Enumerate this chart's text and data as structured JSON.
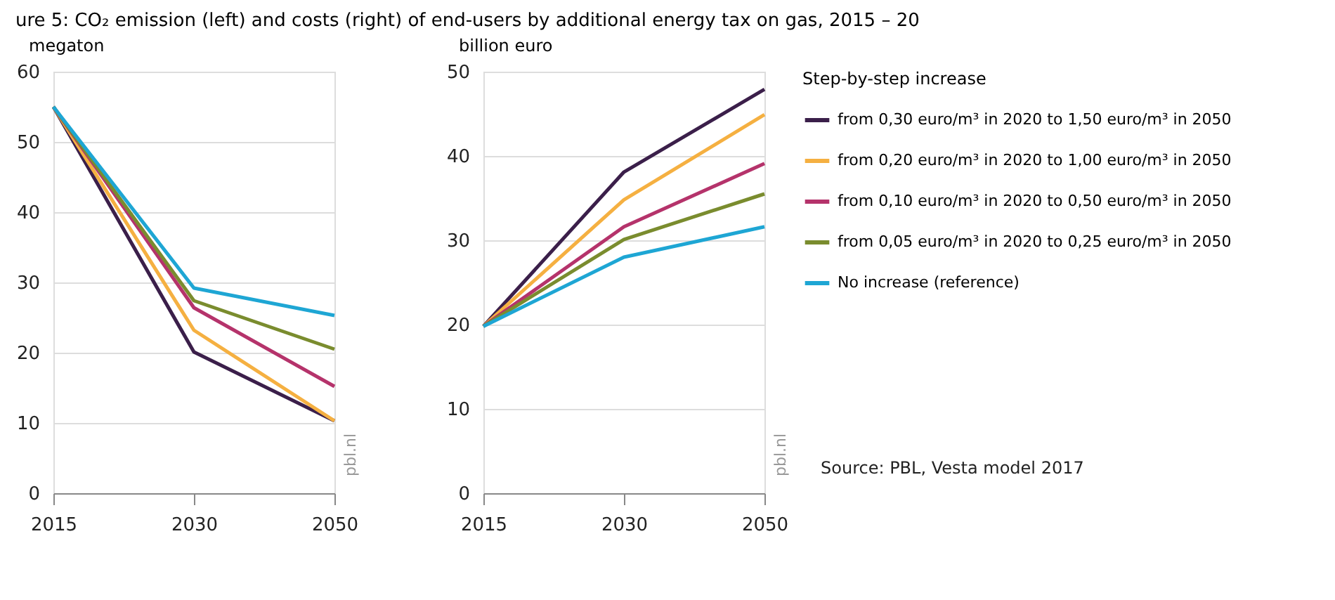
{
  "chart_data": [
    {
      "type": "line",
      "title": "ure 5: CO₂ emission (left) and costs (right) of end-users by additional energy tax on gas, 2015 – 20",
      "ylabel": "megaton",
      "categories": [
        "2015",
        "2030",
        "2050"
      ],
      "ylim": [
        0,
        60
      ],
      "yticks": [
        0,
        10,
        20,
        30,
        40,
        50,
        60
      ],
      "grid": "y",
      "legend": false,
      "line_style": "solid",
      "marker": "none",
      "series": [
        {
          "color": "#3b1f4a",
          "values": [
            55,
            20.1,
            10.3
          ]
        },
        {
          "color": "#f5b041",
          "values": [
            55,
            23.2,
            10.3
          ]
        },
        {
          "color": "#b5336b",
          "values": [
            55,
            26.4,
            15.2
          ]
        },
        {
          "color": "#7a8c2e",
          "values": [
            55,
            27.4,
            20.5
          ]
        },
        {
          "color": "#1ea6d4",
          "values": [
            55,
            29.2,
            25.3
          ]
        }
      ],
      "annotations": [
        "pbl.nl"
      ]
    },
    {
      "type": "line",
      "ylabel": "billion euro",
      "categories": [
        "2015",
        "2030",
        "2050"
      ],
      "ylim": [
        0,
        50
      ],
      "yticks": [
        0,
        10,
        20,
        30,
        40,
        50
      ],
      "grid": "y",
      "legend": "right",
      "legend_title": "Step-by-step increase",
      "line_style": "solid",
      "marker": "none",
      "series": [
        {
          "name": "from 0,30 euro/m³ in 2020 to 1,50 euro/m³ in 2050",
          "color": "#3b1f4a",
          "values": [
            19.8,
            38.1,
            47.9
          ]
        },
        {
          "name": "from 0,20 euro/m³ in 2020 to 1,00 euro/m³ in 2050",
          "color": "#f5b041",
          "values": [
            19.8,
            34.8,
            44.9
          ]
        },
        {
          "name": "from 0,10 euro/m³ in 2020 to 0,50 euro/m³ in 2050",
          "color": "#b5336b",
          "values": [
            19.8,
            31.6,
            39.1
          ]
        },
        {
          "name": "from 0,05 euro/m³ in 2020 to 0,25 euro/m³ in 2050",
          "color": "#7a8c2e",
          "values": [
            19.8,
            30.1,
            35.5
          ]
        },
        {
          "name": "No increase (reference)",
          "color": "#1ea6d4",
          "values": [
            19.8,
            28.0,
            31.6
          ]
        }
      ],
      "annotations": [
        "pbl.nl",
        "Source: PBL, Vesta model 2017"
      ]
    }
  ]
}
